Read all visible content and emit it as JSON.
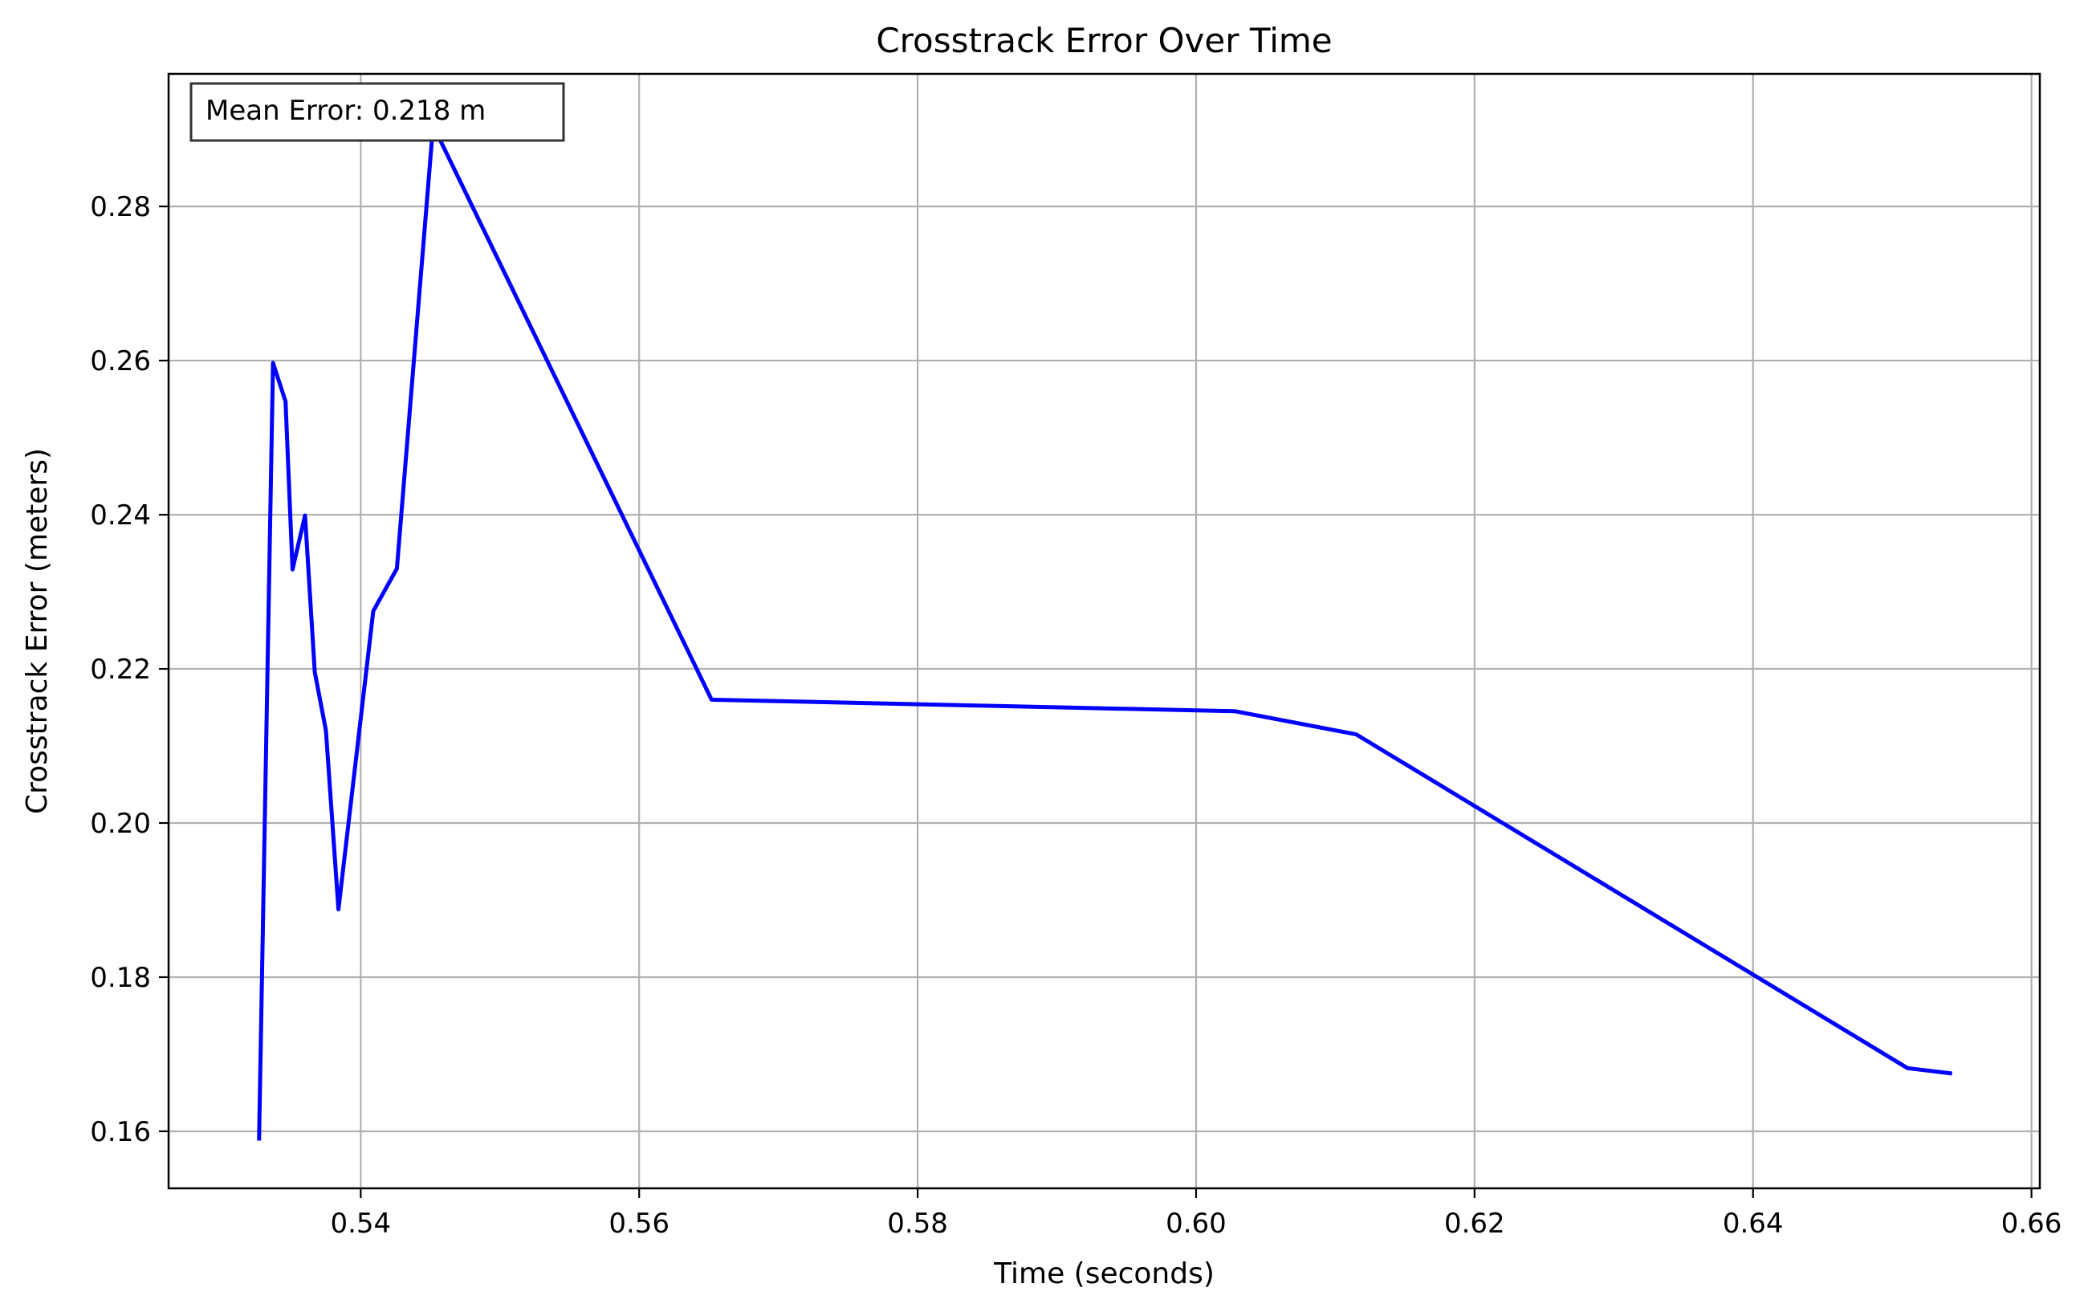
{
  "chart_data": {
    "type": "line",
    "title": "Crosstrack Error Over Time",
    "xlabel": "Time (seconds)",
    "ylabel": "Crosstrack Error (meters)",
    "xlim": [
      0.5262,
      0.6606
    ],
    "ylim": [
      0.1526,
      0.2972
    ],
    "x_ticks": [
      0.54,
      0.56,
      0.58,
      0.6,
      0.62,
      0.64,
      0.66
    ],
    "x_tick_labels": [
      "0.54",
      "0.56",
      "0.58",
      "0.60",
      "0.62",
      "0.64",
      "0.66"
    ],
    "y_ticks": [
      0.16,
      0.18,
      0.2,
      0.22,
      0.24,
      0.26,
      0.28
    ],
    "y_tick_labels": [
      "0.16",
      "0.18",
      "0.20",
      "0.22",
      "0.24",
      "0.26",
      "0.28"
    ],
    "grid": true,
    "annotation": "Mean Error: 0.218 m",
    "series": [
      {
        "color": "#0000ff",
        "x": [
          0.5327,
          0.5337,
          0.5346,
          0.5351,
          0.536,
          0.5367,
          0.5375,
          0.5384,
          0.5409,
          0.5426,
          0.5452,
          0.5652,
          0.6028,
          0.6115,
          0.6511,
          0.6543
        ],
        "y": [
          0.1588,
          0.2597,
          0.2547,
          0.2329,
          0.2399,
          0.2196,
          0.212,
          0.1888,
          0.2275,
          0.233,
          0.2905,
          0.216,
          0.2145,
          0.2115,
          0.1682,
          0.1675
        ]
      }
    ]
  }
}
